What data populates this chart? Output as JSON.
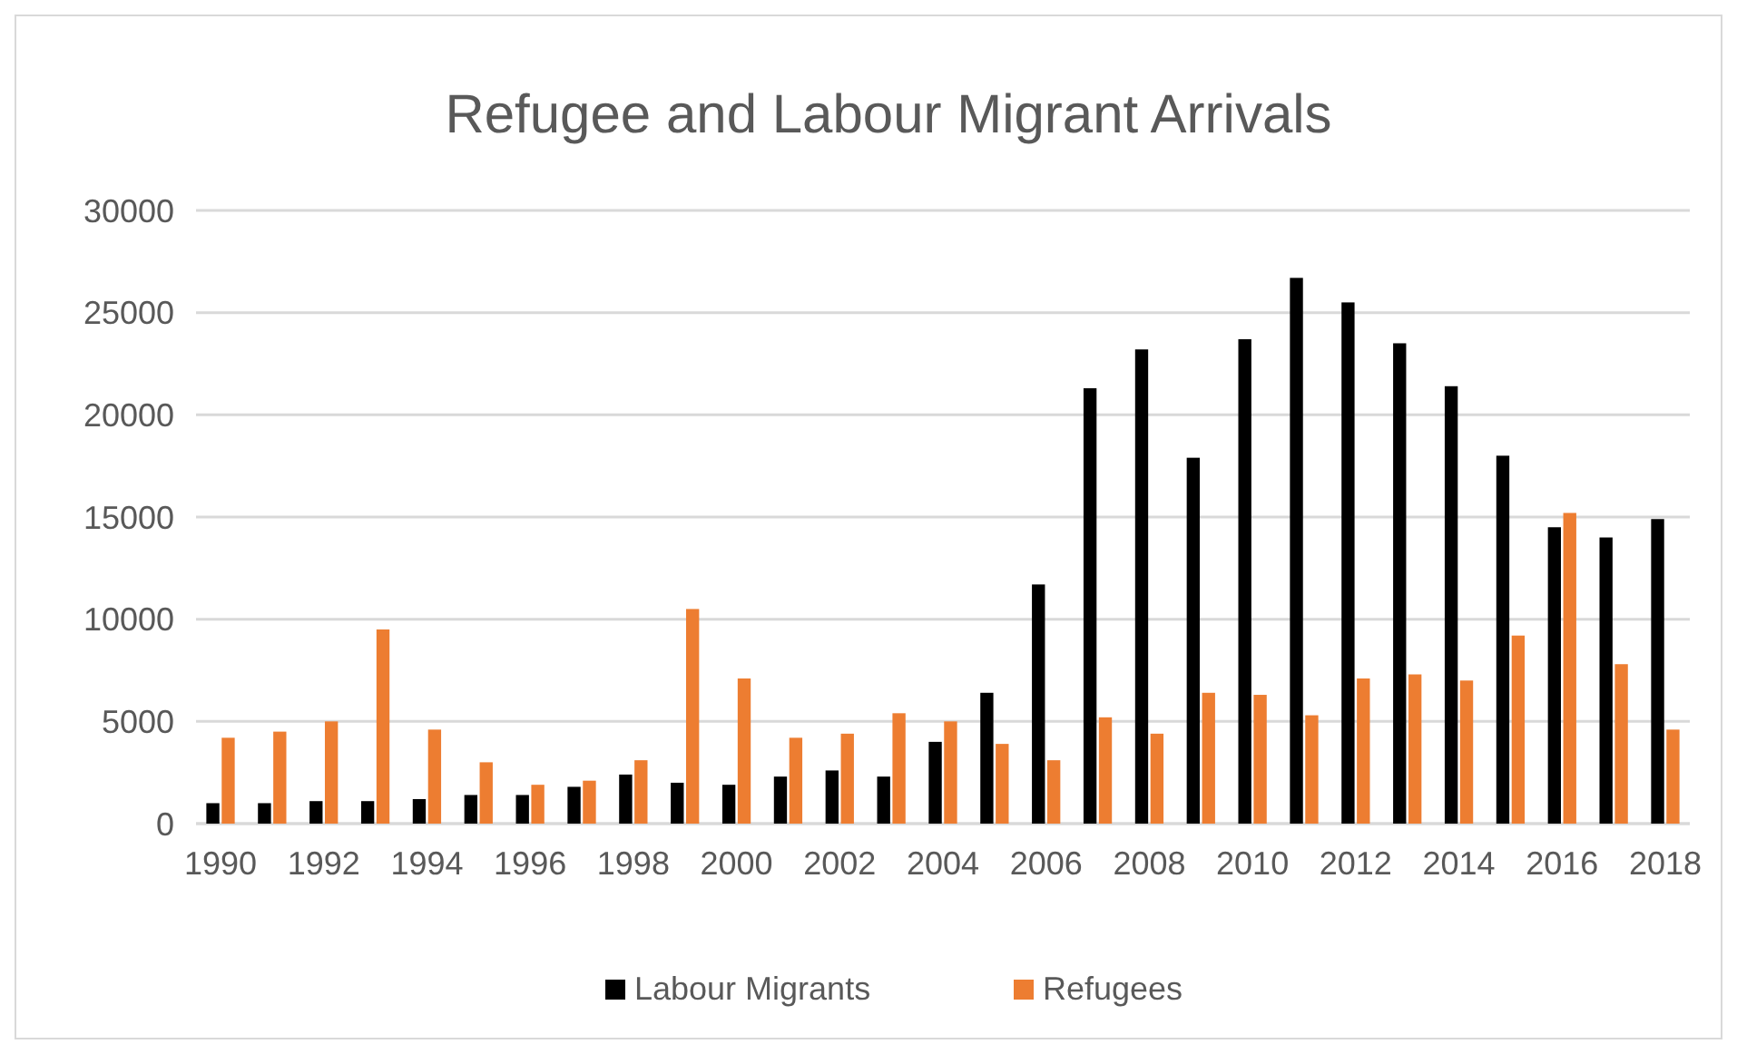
{
  "chart_data": {
    "type": "bar",
    "title": "Refugee and Labour Migrant Arrivals",
    "categories": [
      "1990",
      null,
      "1992",
      null,
      "1994",
      null,
      "1996",
      null,
      "1998",
      null,
      "2000",
      null,
      "2002",
      null,
      "2004",
      null,
      "2006",
      null,
      "2008",
      null,
      "2010",
      null,
      "2012",
      null,
      "2014",
      null,
      "2016",
      null,
      "2018"
    ],
    "series": [
      {
        "name": "Labour Migrants",
        "color": "#000000",
        "values": [
          1000,
          1000,
          1100,
          1100,
          1200,
          1400,
          1400,
          1800,
          2400,
          2000,
          1900,
          2300,
          2600,
          2300,
          4000,
          6400,
          11700,
          21300,
          23200,
          17900,
          23700,
          26700,
          25500,
          23500,
          21400,
          18000,
          14500,
          14000,
          14900
        ]
      },
      {
        "name": "Refugees",
        "color": "#ed7d31",
        "values": [
          4200,
          4500,
          5000,
          9500,
          4600,
          3000,
          1900,
          2100,
          3100,
          10500,
          7100,
          4200,
          4400,
          5400,
          5000,
          3900,
          3100,
          5200,
          4400,
          6400,
          6300,
          5300,
          7100,
          7300,
          7000,
          9200,
          15200,
          7800,
          4600
        ]
      }
    ],
    "ylim": [
      0,
      30000
    ],
    "yticks": [
      0,
      5000,
      10000,
      15000,
      20000,
      25000,
      30000
    ],
    "grid": "y",
    "legend": "bottom"
  }
}
